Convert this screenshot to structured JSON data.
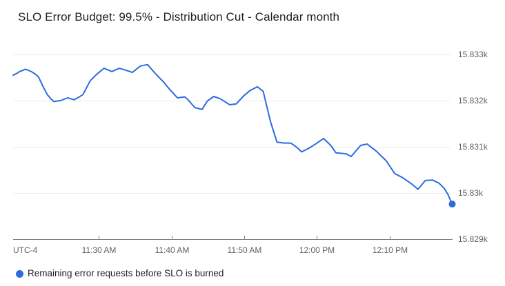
{
  "header": {
    "title": "SLO Error Budget: 99.5% - Distribution Cut - Calendar month"
  },
  "legend": {
    "label": "Remaining error requests before SLO is burned",
    "marker_color": "#2b6bde"
  },
  "colors": {
    "series_blue": "#2b6bde",
    "grid": "#e9e9e9",
    "axis": "#808080",
    "tick_label": "#616161",
    "title_text": "#1f1f1f",
    "legend_text": "#1f1f1f",
    "background": "#ffffff"
  },
  "chart_data": {
    "type": "line",
    "title": "SLO Error Budget: 99.5% - Distribution Cut - Calendar month",
    "grid": true,
    "legend_position": "bottom-left",
    "x_axis": {
      "utc_label": "UTC-4",
      "t_unit": "minutes after 11:00 AM (UTC-4)",
      "ticks": [
        {
          "label": "11:30 AM",
          "t": 30
        },
        {
          "label": "11:40 AM",
          "t": 40
        },
        {
          "label": "11:50 AM",
          "t": 50
        },
        {
          "label": "12:00 PM",
          "t": 60
        },
        {
          "label": "12:10 PM",
          "t": 70
        }
      ]
    },
    "y_axis": {
      "unit": "requests",
      "ticks": [
        {
          "label": "15.833k",
          "value": 15833
        },
        {
          "label": "15.832k",
          "value": 15832
        },
        {
          "label": "15.831k",
          "value": 15831
        },
        {
          "label": "15.83k",
          "value": 15830
        },
        {
          "label": "15.829k",
          "value": 15829
        }
      ]
    },
    "tlim": [
      18.2,
      78.65
    ],
    "ylim": [
      15829,
      15833.209
    ],
    "series": [
      {
        "name": "Remaining error requests before SLO is burned",
        "color": "#2b6bde",
        "end_marker": true,
        "points": [
          [
            18.2,
            15832.55
          ],
          [
            18.7,
            15832.59
          ],
          [
            19.1,
            15832.63
          ],
          [
            19.6,
            15832.66
          ],
          [
            19.9,
            15832.68
          ],
          [
            20.4,
            15832.65
          ],
          [
            20.7,
            15832.63
          ],
          [
            21.2,
            15832.58
          ],
          [
            21.7,
            15832.51
          ],
          [
            22.3,
            15832.31
          ],
          [
            22.9,
            15832.13
          ],
          [
            23.4,
            15832.04
          ],
          [
            23.8,
            15831.98
          ],
          [
            24.7,
            15832.0
          ],
          [
            25.7,
            15832.06
          ],
          [
            26.6,
            15832.02
          ],
          [
            27.2,
            15832.07
          ],
          [
            27.8,
            15832.13
          ],
          [
            28.8,
            15832.43
          ],
          [
            29.7,
            15832.57
          ],
          [
            30.7,
            15832.7
          ],
          [
            31.8,
            15832.63
          ],
          [
            32.8,
            15832.7
          ],
          [
            33.7,
            15832.66
          ],
          [
            34.6,
            15832.61
          ],
          [
            35.7,
            15832.75
          ],
          [
            36.7,
            15832.78
          ],
          [
            37.8,
            15832.58
          ],
          [
            38.8,
            15832.42
          ],
          [
            39.7,
            15832.25
          ],
          [
            40.8,
            15832.06
          ],
          [
            41.8,
            15832.08
          ],
          [
            42.2,
            15832.03
          ],
          [
            43.2,
            15831.85
          ],
          [
            44.2,
            15831.81
          ],
          [
            44.9,
            15831.99
          ],
          [
            45.8,
            15832.09
          ],
          [
            46.7,
            15832.04
          ],
          [
            48.0,
            15831.91
          ],
          [
            48.9,
            15831.93
          ],
          [
            49.9,
            15832.1
          ],
          [
            50.8,
            15832.22
          ],
          [
            51.8,
            15832.3
          ],
          [
            52.6,
            15832.2
          ],
          [
            53.6,
            15831.55
          ],
          [
            54.5,
            15831.1
          ],
          [
            55.5,
            15831.08
          ],
          [
            56.4,
            15831.08
          ],
          [
            57.2,
            15830.99
          ],
          [
            57.9,
            15830.89
          ],
          [
            58.9,
            15830.97
          ],
          [
            59.9,
            15831.07
          ],
          [
            60.9,
            15831.18
          ],
          [
            61.9,
            15831.03
          ],
          [
            62.6,
            15830.87
          ],
          [
            64.0,
            15830.85
          ],
          [
            64.7,
            15830.79
          ],
          [
            66.0,
            15831.03
          ],
          [
            66.9,
            15831.06
          ],
          [
            68.2,
            15830.9
          ],
          [
            69.5,
            15830.7
          ],
          [
            70.7,
            15830.42
          ],
          [
            71.8,
            15830.33
          ],
          [
            72.9,
            15830.21
          ],
          [
            73.9,
            15830.08
          ],
          [
            74.9,
            15830.27
          ],
          [
            75.9,
            15830.28
          ],
          [
            76.8,
            15830.21
          ],
          [
            77.5,
            15830.1
          ],
          [
            78.0,
            15829.97
          ],
          [
            78.6,
            15829.76
          ]
        ]
      }
    ]
  }
}
